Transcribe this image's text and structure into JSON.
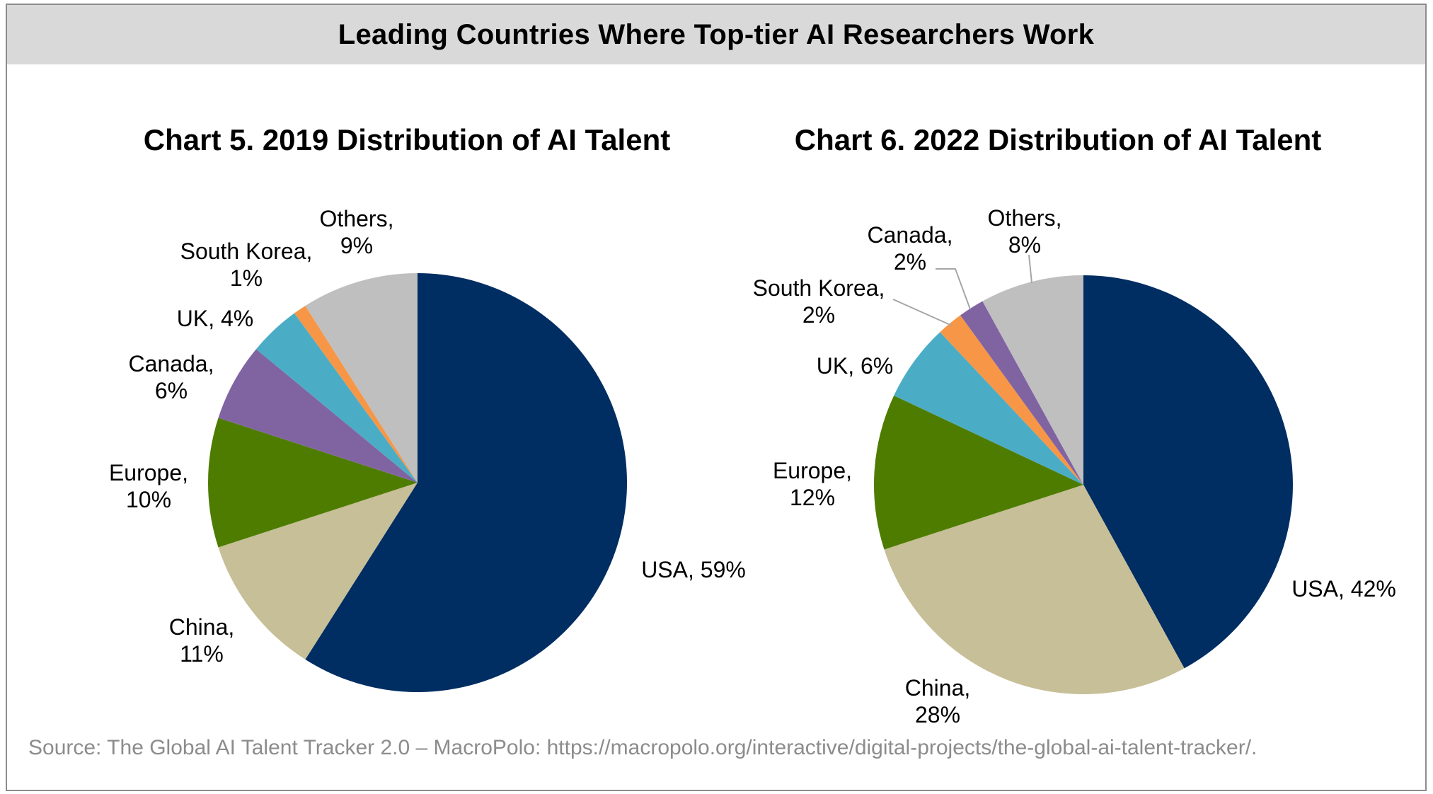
{
  "header": {
    "title": "Leading Countries Where Top-tier AI Researchers Work"
  },
  "source": "Source: The Global AI Talent Tracker 2.0 – MacroPolo: https://macropolo.org/interactive/digital-projects/the-global-ai-talent-tracker/.",
  "colors": {
    "USA": "#002d62",
    "China": "#c6bf97",
    "Europe": "#4e7c00",
    "Canada": "#8064a2",
    "UK": "#4bacc6",
    "South Korea": "#f79646",
    "Others": "#bfbfbf",
    "header_band": "#d9d9d9",
    "source_text": "#8c8c8c"
  },
  "chart_data": [
    {
      "type": "pie",
      "title": "Chart 5. 2019 Distribution of AI Talent",
      "slices": [
        {
          "name": "USA",
          "value": 59,
          "label_lines": [
            "USA, 59%"
          ]
        },
        {
          "name": "China",
          "value": 11,
          "label_lines": [
            "China,",
            "11%"
          ]
        },
        {
          "name": "Europe",
          "value": 10,
          "label_lines": [
            "Europe,",
            "10%"
          ]
        },
        {
          "name": "Canada",
          "value": 6,
          "label_lines": [
            "Canada,",
            "6%"
          ]
        },
        {
          "name": "UK",
          "value": 4,
          "label_lines": [
            "UK, 4%"
          ]
        },
        {
          "name": "South Korea",
          "value": 1,
          "label_lines": [
            "South Korea,",
            "1%"
          ]
        },
        {
          "name": "Others",
          "value": 9,
          "label_lines": [
            "Others,",
            "9%"
          ]
        }
      ]
    },
    {
      "type": "pie",
      "title": "Chart 6. 2022 Distribution of AI Talent",
      "slices": [
        {
          "name": "USA",
          "value": 42,
          "label_lines": [
            "USA, 42%"
          ]
        },
        {
          "name": "China",
          "value": 28,
          "label_lines": [
            "China,",
            "28%"
          ]
        },
        {
          "name": "Europe",
          "value": 12,
          "label_lines": [
            "Europe,",
            "12%"
          ]
        },
        {
          "name": "UK",
          "value": 6,
          "label_lines": [
            "UK, 6%"
          ]
        },
        {
          "name": "South Korea",
          "value": 2,
          "label_lines": [
            "South Korea,",
            "2%"
          ]
        },
        {
          "name": "Canada",
          "value": 2,
          "label_lines": [
            "Canada,",
            "2%"
          ]
        },
        {
          "name": "Others",
          "value": 8,
          "label_lines": [
            "Others,",
            "8%"
          ]
        }
      ]
    }
  ]
}
